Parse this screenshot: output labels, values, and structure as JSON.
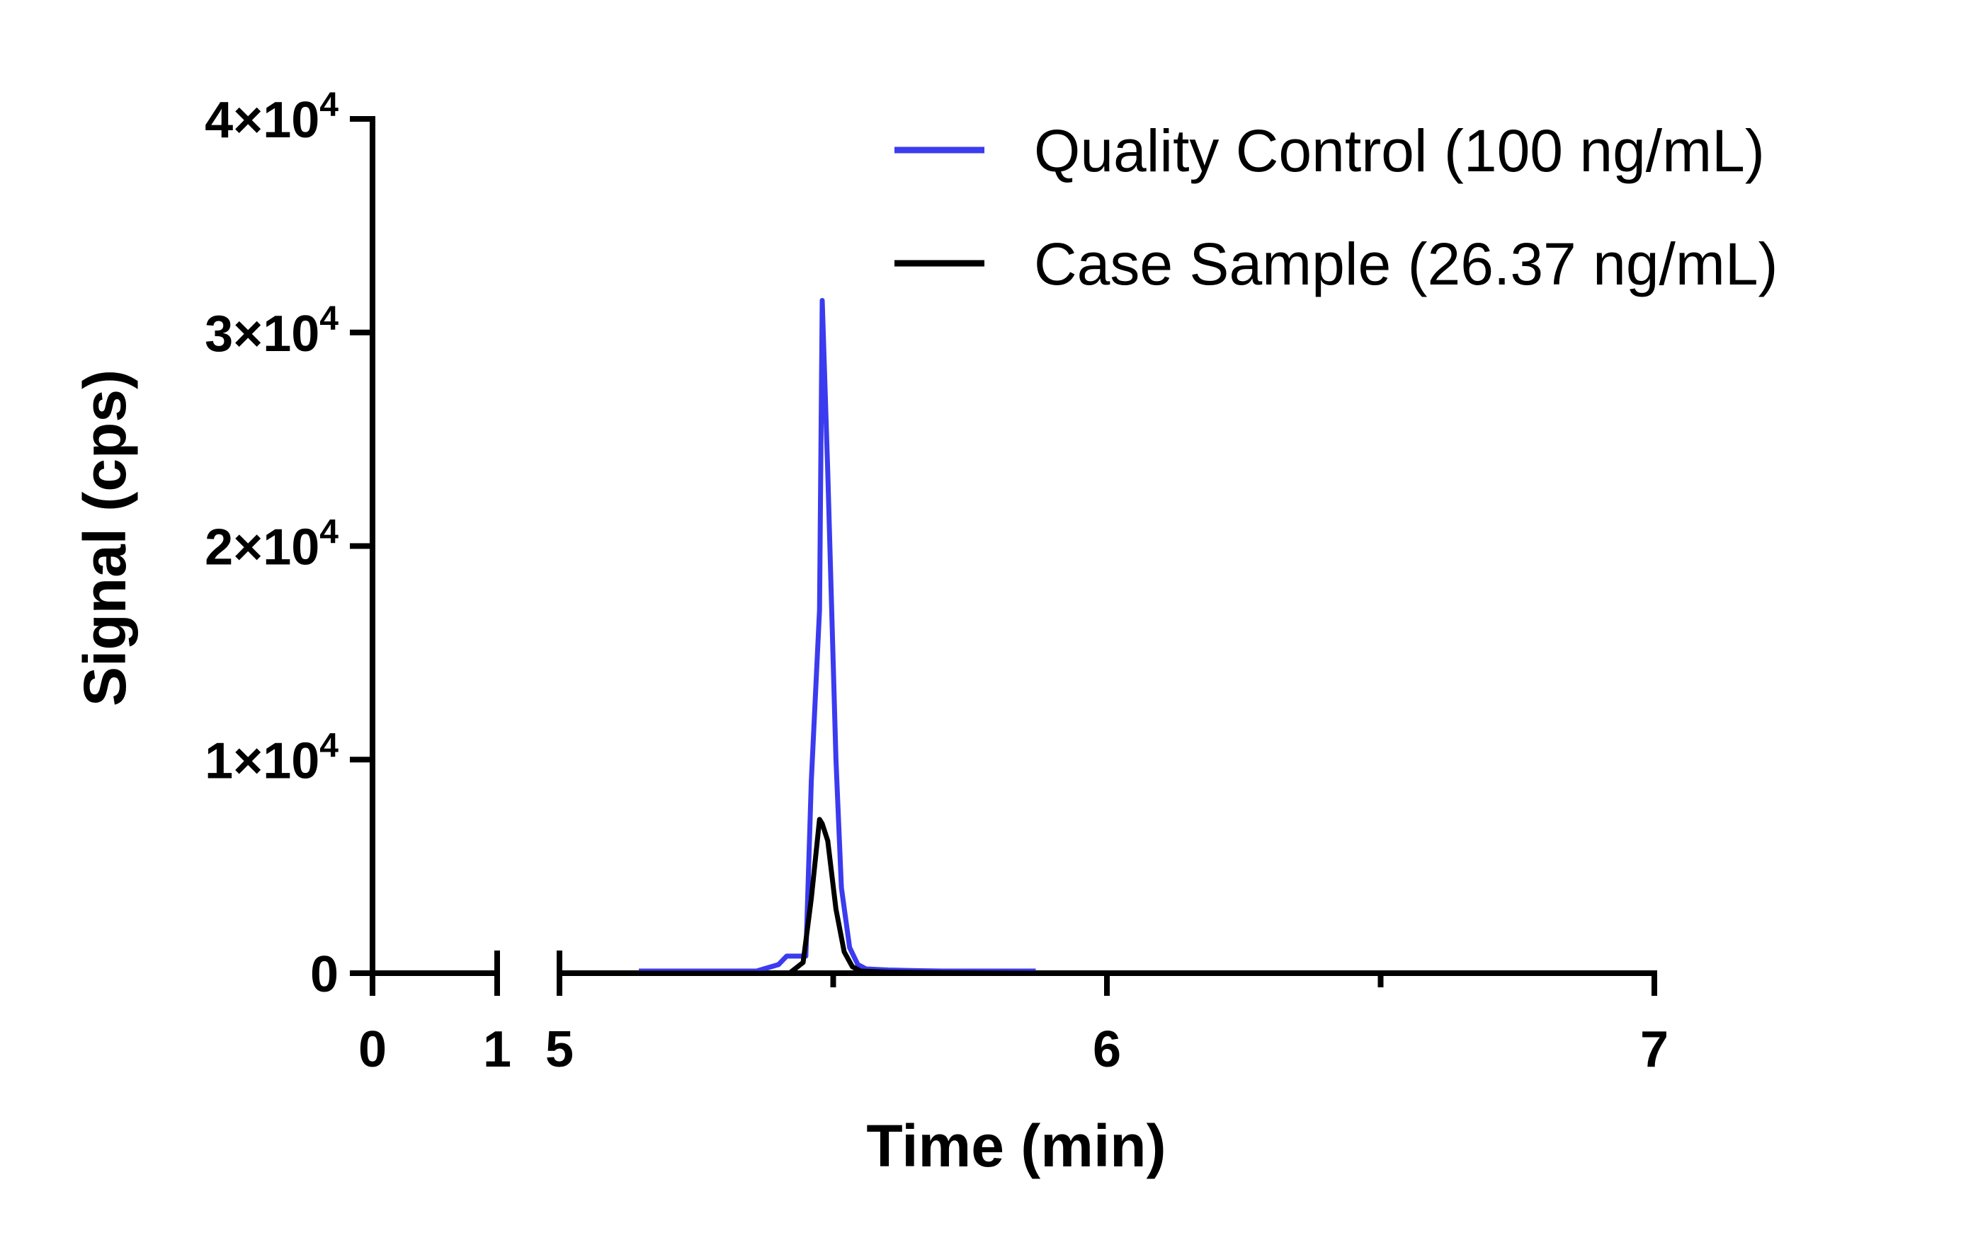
{
  "chart_data": {
    "type": "line",
    "title": "",
    "xlabel": "Time (min)",
    "ylabel": "Signal (cps)",
    "ylim": [
      0,
      40000
    ],
    "x_axis_break": {
      "segment1": [
        0,
        1
      ],
      "segment2": [
        5,
        7
      ]
    },
    "xticks": [
      {
        "value": 0,
        "label": "0"
      },
      {
        "value": 1,
        "label": "1"
      },
      {
        "value": 5,
        "label": "5"
      },
      {
        "value": 6,
        "label": "6"
      },
      {
        "value": 7,
        "label": "7"
      }
    ],
    "x_minor_ticks": [
      5.5,
      6.5
    ],
    "yticks": [
      {
        "value": 0,
        "mantissa": "0",
        "exponent": ""
      },
      {
        "value": 10000,
        "mantissa": "1×10",
        "exponent": "4"
      },
      {
        "value": 20000,
        "mantissa": "2×10",
        "exponent": "4"
      },
      {
        "value": 30000,
        "mantissa": "3×10",
        "exponent": "4"
      },
      {
        "value": 40000,
        "mantissa": "4×10",
        "exponent": "4"
      }
    ],
    "legend_position": "top-right",
    "series": [
      {
        "name": "Quality Control (100 ng/mL)",
        "color": "#3b3bef",
        "x": [
          5.145,
          5.25,
          5.36,
          5.4,
          5.415,
          5.435,
          5.45,
          5.46,
          5.475,
          5.48,
          5.49,
          5.505,
          5.515,
          5.53,
          5.545,
          5.56,
          5.6,
          5.65,
          5.7,
          5.87
        ],
        "y": [
          100,
          100,
          100,
          400,
          800,
          800,
          800,
          9000,
          17000,
          31500,
          23500,
          10000,
          4000,
          1200,
          400,
          200,
          150,
          120,
          100,
          100
        ]
      },
      {
        "name": "Case Sample (26.37 ng/mL)",
        "color": "#000000",
        "x": [
          5.145,
          5.3,
          5.42,
          5.445,
          5.46,
          5.475,
          5.48,
          5.49,
          5.505,
          5.52,
          5.535,
          5.55,
          5.6,
          5.7,
          5.87
        ],
        "y": [
          0,
          0,
          0,
          500,
          3500,
          7200,
          7000,
          6200,
          3000,
          1000,
          300,
          100,
          50,
          20,
          0
        ]
      }
    ]
  }
}
